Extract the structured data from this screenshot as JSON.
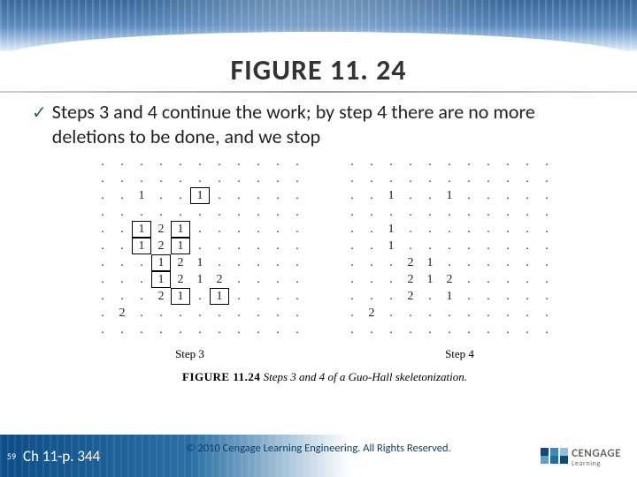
{
  "title": "FIGURE 11. 24",
  "bullet": "Steps 3 and 4 continue the work; by step 4 there are no more deletions to be done, and we stop",
  "grid_left": {
    "label": "Step 3",
    "cells": [
      [
        ".",
        ".",
        ".",
        ".",
        ".",
        ".",
        ".",
        ".",
        ".",
        ".",
        "."
      ],
      [
        ".",
        ".",
        ".",
        ".",
        ".",
        ".",
        ".",
        ".",
        ".",
        ".",
        "."
      ],
      [
        ".",
        ".",
        "1",
        ".",
        ".",
        "[1]",
        ".",
        ".",
        ".",
        ".",
        "."
      ],
      [
        ".",
        ".",
        ".",
        ".",
        ".",
        ".",
        ".",
        ".",
        ".",
        ".",
        "."
      ],
      [
        ".",
        ".",
        "[1]",
        "2",
        "[1]",
        ".",
        ".",
        ".",
        ".",
        ".",
        "."
      ],
      [
        ".",
        ".",
        "[1]",
        "2",
        "[1]",
        ".",
        ".",
        ".",
        ".",
        ".",
        "."
      ],
      [
        ".",
        ".",
        ".",
        "[1]",
        "2",
        "1",
        ".",
        ".",
        ".",
        ".",
        "."
      ],
      [
        ".",
        ".",
        ".",
        "[1]",
        "2",
        "1",
        "2",
        ".",
        ".",
        ".",
        "."
      ],
      [
        ".",
        ".",
        ".",
        "2",
        "[1]",
        ".",
        "[1]",
        ".",
        ".",
        ".",
        "."
      ],
      [
        ".",
        "2",
        ".",
        ".",
        ".",
        ".",
        ".",
        ".",
        ".",
        ".",
        "."
      ],
      [
        ".",
        ".",
        ".",
        ".",
        ".",
        ".",
        ".",
        ".",
        ".",
        ".",
        "."
      ]
    ]
  },
  "grid_right": {
    "label": "Step 4",
    "cells": [
      [
        ".",
        ".",
        ".",
        ".",
        ".",
        ".",
        ".",
        ".",
        ".",
        ".",
        "."
      ],
      [
        ".",
        ".",
        ".",
        ".",
        ".",
        ".",
        ".",
        ".",
        ".",
        ".",
        "."
      ],
      [
        ".",
        ".",
        "1",
        ".",
        ".",
        "1",
        ".",
        ".",
        ".",
        ".",
        "."
      ],
      [
        ".",
        ".",
        ".",
        ".",
        ".",
        ".",
        ".",
        ".",
        ".",
        ".",
        "."
      ],
      [
        ".",
        ".",
        "1",
        ".",
        ".",
        ".",
        ".",
        ".",
        ".",
        ".",
        "."
      ],
      [
        ".",
        ".",
        "1",
        ".",
        ".",
        ".",
        ".",
        ".",
        ".",
        ".",
        "."
      ],
      [
        ".",
        ".",
        ".",
        "2",
        "1",
        ".",
        ".",
        ".",
        ".",
        ".",
        "."
      ],
      [
        ".",
        ".",
        ".",
        "2",
        "1",
        "2",
        ".",
        ".",
        ".",
        ".",
        "."
      ],
      [
        ".",
        ".",
        ".",
        "2",
        ".",
        "1",
        ".",
        ".",
        ".",
        ".",
        "."
      ],
      [
        ".",
        "2",
        ".",
        ".",
        ".",
        ".",
        ".",
        ".",
        ".",
        ".",
        "."
      ],
      [
        ".",
        ".",
        ".",
        ".",
        ".",
        ".",
        ".",
        ".",
        ".",
        ".",
        "."
      ]
    ]
  },
  "caption_num": "FIGURE 11.24",
  "caption_text": "Steps 3 and 4 of a Guo-Hall skeletonization.",
  "footer": {
    "slide_num": "59",
    "page_ref": "Ch 11-p. 344",
    "copyright": "© 2010 Cengage Learning Engineering. All Rights Reserved.",
    "brand": "CENGAGE",
    "brand_sub": "Learning"
  },
  "colors": {
    "check": "#2f6a2f",
    "header_dark": "#3a6a9a"
  }
}
